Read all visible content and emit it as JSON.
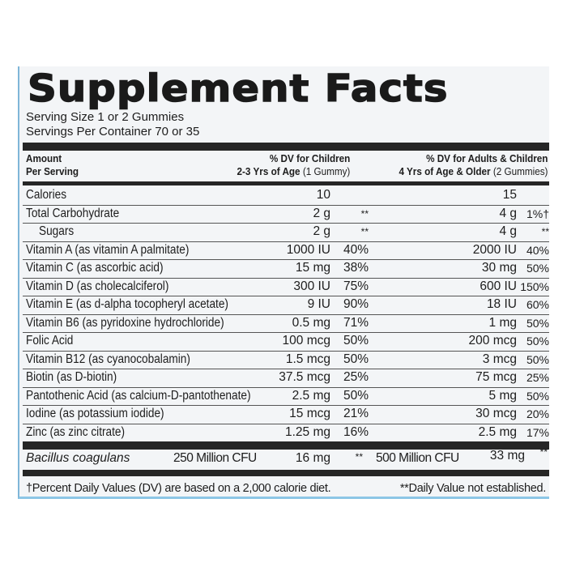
{
  "title": "Supplement Facts",
  "serving_size": "Serving Size 1 or 2 Gummies",
  "servings_per_container": "Servings Per Container 70 or 35",
  "header": {
    "amount_line1": "Amount",
    "amount_line2": "Per Serving",
    "children_line1": "% DV for Children",
    "children_line2_bold": "2-3 Yrs of Age",
    "children_line2_light": "(1 Gummy)",
    "adults_line1": "% DV for Adults & Children",
    "adults_line2_bold": "4 Yrs of Age & Older",
    "adults_line2_light": "(2 Gummies)"
  },
  "rows": [
    {
      "name": "Calories",
      "child_amount": "10",
      "child_dv": "",
      "adult_amount": "15",
      "adult_dv": ""
    },
    {
      "name": "Total Carbohydrate",
      "child_amount": "2 g",
      "child_dv": "**",
      "adult_amount": "4 g",
      "adult_dv": "1%†"
    },
    {
      "name": "  Sugars",
      "child_amount": "2 g",
      "child_dv": "**",
      "adult_amount": "4 g",
      "adult_dv": "**"
    },
    {
      "name": "Vitamin A (as vitamin A palmitate)",
      "child_amount": "1000 IU",
      "child_dv": "40%",
      "adult_amount": "2000 IU",
      "adult_dv": "40%"
    },
    {
      "name": "Vitamin C (as ascorbic acid)",
      "child_amount": "15 mg",
      "child_dv": "38%",
      "adult_amount": "30 mg",
      "adult_dv": "50%"
    },
    {
      "name": "Vitamin D (as cholecalciferol)",
      "child_amount": "300 IU",
      "child_dv": "75%",
      "adult_amount": "600 IU",
      "adult_dv": "150%"
    },
    {
      "name": "Vitamin E (as d-alpha tocopheryl acetate)",
      "child_amount": "9 IU",
      "child_dv": "90%",
      "adult_amount": "18 IU",
      "adult_dv": "60%"
    },
    {
      "name": "Vitamin B6 (as pyridoxine hydrochloride)",
      "child_amount": "0.5 mg",
      "child_dv": "71%",
      "adult_amount": "1 mg",
      "adult_dv": "50%"
    },
    {
      "name": "Folic Acid",
      "child_amount": "100 mcg",
      "child_dv": "50%",
      "adult_amount": "200 mcg",
      "adult_dv": "50%"
    },
    {
      "name": "Vitamin B12 (as cyanocobalamin)",
      "child_amount": "1.5 mcg",
      "child_dv": "50%",
      "adult_amount": "3 mcg",
      "adult_dv": "50%"
    },
    {
      "name": "Biotin (as D-biotin)",
      "child_amount": "37.5 mcg",
      "child_dv": "25%",
      "adult_amount": "75 mcg",
      "adult_dv": "25%"
    },
    {
      "name": "Pantothenic Acid (as calcium-D-pantothenate)",
      "child_amount": "2.5 mg",
      "child_dv": "50%",
      "adult_amount": "5 mg",
      "adult_dv": "50%"
    },
    {
      "name": "Iodine (as potassium iodide)",
      "child_amount": "15 mcg",
      "child_dv": "21%",
      "adult_amount": "30 mcg",
      "adult_dv": "20%"
    },
    {
      "name": "Zinc (as zinc citrate)",
      "child_amount": "1.25 mg",
      "child_dv": "16%",
      "adult_amount": "2.5 mg",
      "adult_dv": "17%"
    }
  ],
  "bacillus": {
    "name": "Bacillus coagulans",
    "child_cfu": "250 Million CFU",
    "child_amount": "16 mg",
    "child_dv": "**",
    "adult_cfu": "500 Million CFU",
    "adult_amount": "33 mg",
    "adult_dv": "**"
  },
  "footnote_left": "†Percent Daily Values (DV) are based on a 2,000 calorie diet.",
  "footnote_right": "**Daily Value not established."
}
